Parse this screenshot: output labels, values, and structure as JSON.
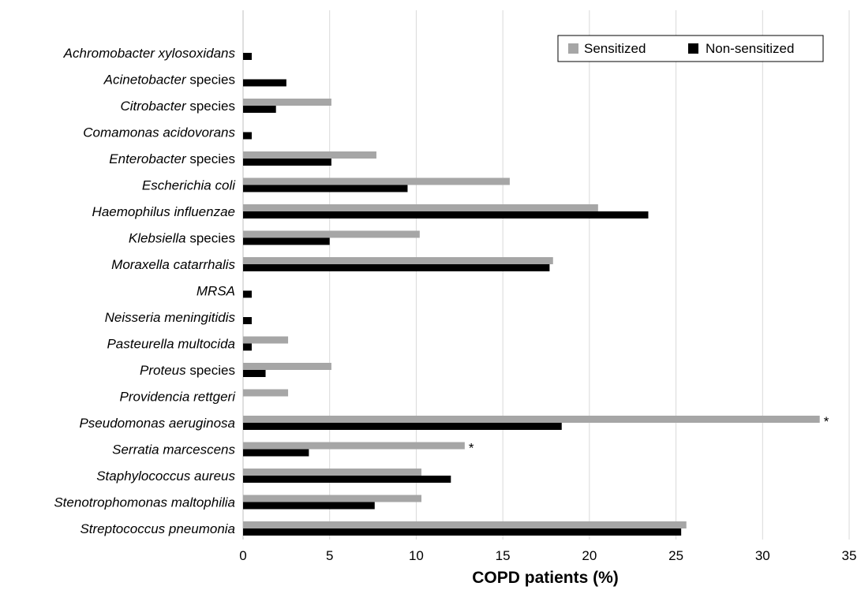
{
  "chart_data": {
    "type": "bar",
    "orientation": "horizontal",
    "xlabel": "COPD patients (%)",
    "ylabel": "",
    "xlim": [
      0,
      35
    ],
    "xticks": [
      0,
      5,
      10,
      15,
      20,
      25,
      30,
      35
    ],
    "grid": "vertical",
    "legend_position": "top-right",
    "categories": [
      {
        "italic": "Achromobacter xylosoxidans",
        "plain": ""
      },
      {
        "italic": "Acinetobacter",
        "plain": " species"
      },
      {
        "italic": "Citrobacter",
        "plain": " species"
      },
      {
        "italic": "Comamonas acidovorans",
        "plain": ""
      },
      {
        "italic": "Enterobacter",
        "plain": " species"
      },
      {
        "italic": "Escherichia coli",
        "plain": ""
      },
      {
        "italic": "Haemophilus influenzae",
        "plain": ""
      },
      {
        "italic": "Klebsiella",
        "plain": " species"
      },
      {
        "italic": "Moraxella catarrhalis",
        "plain": ""
      },
      {
        "italic": "MRSA",
        "plain": ""
      },
      {
        "italic": "Neisseria meningitidis",
        "plain": ""
      },
      {
        "italic": "Pasteurella multocida",
        "plain": ""
      },
      {
        "italic": "Proteus",
        "plain": " species"
      },
      {
        "italic": "Providencia rettgeri",
        "plain": ""
      },
      {
        "italic": "Pseudomonas aeruginosa",
        "plain": ""
      },
      {
        "italic": "Serratia marcescens",
        "plain": ""
      },
      {
        "italic": "Staphylococcus aureus",
        "plain": ""
      },
      {
        "italic": "Stenotrophomonas maltophilia",
        "plain": ""
      },
      {
        "italic": "Streptococcus pneumonia",
        "plain": ""
      }
    ],
    "series": [
      {
        "name": "Sensitized",
        "color": "#a6a6a6",
        "values": [
          0,
          0,
          5.1,
          0,
          7.7,
          15.4,
          20.5,
          10.2,
          17.9,
          0,
          0,
          2.6,
          5.1,
          2.6,
          33.3,
          12.8,
          10.3,
          10.3,
          25.6
        ]
      },
      {
        "name": "Non-sensitized",
        "color": "#000000",
        "values": [
          0.5,
          2.5,
          1.9,
          0.5,
          5.1,
          9.5,
          23.4,
          5.0,
          17.7,
          0.5,
          0.5,
          0.5,
          1.3,
          0,
          18.4,
          3.8,
          12.0,
          7.6,
          25.3
        ]
      }
    ],
    "annotations": [
      {
        "category_index": 14,
        "series": "Sensitized",
        "text": "*"
      },
      {
        "category_index": 15,
        "series": "Sensitized",
        "text": "*"
      }
    ]
  }
}
